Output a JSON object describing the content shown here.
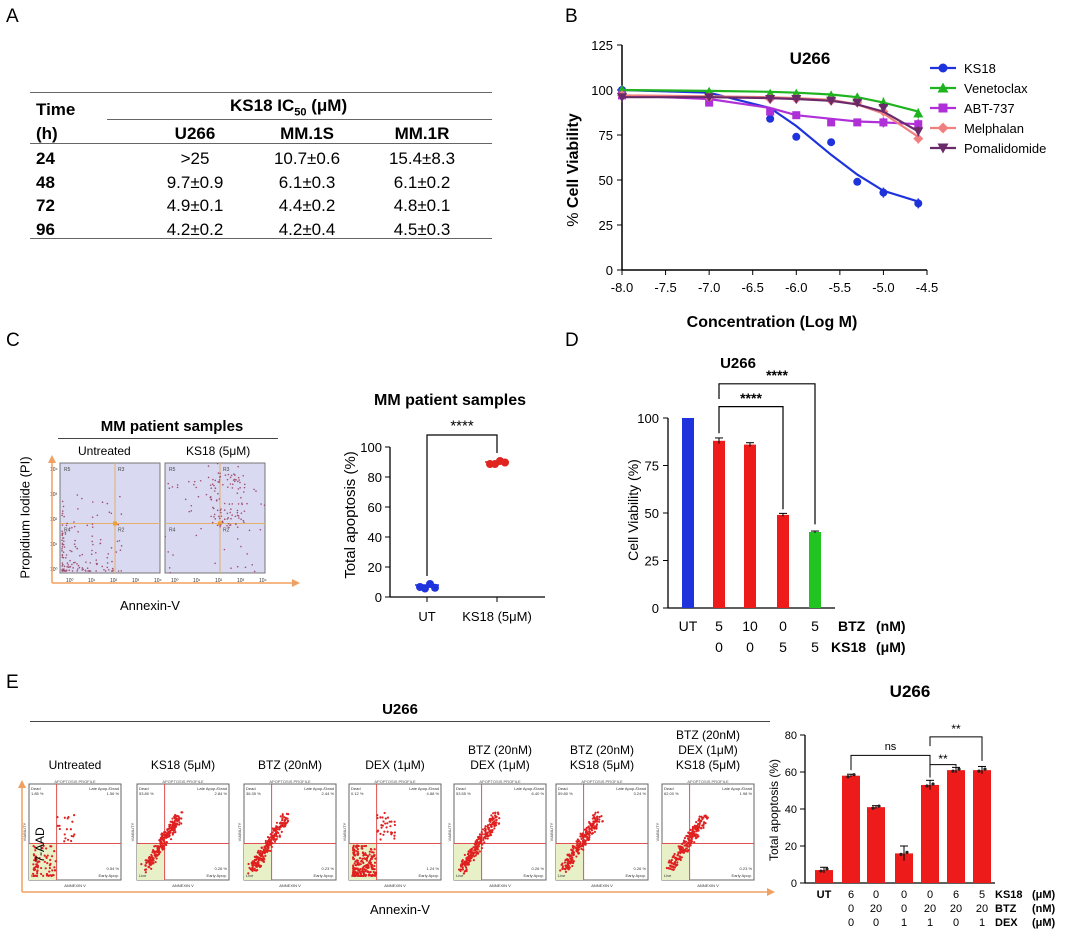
{
  "panels": {
    "a": "A",
    "b": "B",
    "c": "C",
    "d": "D",
    "e": "E"
  },
  "table": {
    "col_time": "Time",
    "col_h": "(h)",
    "title_pre": "KS18 IC",
    "title_sub": "50",
    "title_post": " (μM)",
    "headers": [
      "U266",
      "MM.1S",
      "MM.1R"
    ],
    "rows": [
      {
        "time": "24",
        "v": [
          ">25",
          "10.7±0.6",
          "15.4±8.3"
        ]
      },
      {
        "time": "48",
        "v": [
          "9.7±0.9",
          "6.1±0.3",
          "6.1±0.2"
        ]
      },
      {
        "time": "72",
        "v": [
          "4.9±0.1",
          "4.4±0.2",
          "4.8±0.1"
        ]
      },
      {
        "time": "96",
        "v": [
          "4.2±0.2",
          "4.2±0.4",
          "4.5±0.3"
        ]
      }
    ]
  },
  "chart_data": [
    {
      "id": "B",
      "type": "line",
      "title": "U266",
      "xlabel": "Concentration (Log M)",
      "ylabel_pre": "% ",
      "ylabel_bold": "Cell Viability",
      "xlim": [
        -8.0,
        -4.5
      ],
      "ylim": [
        0,
        125
      ],
      "x_ticks": [
        "-8.0",
        "-7.5",
        "-7.0",
        "-6.5",
        "-6.0",
        "-5.5",
        "-5.0",
        "-4.5"
      ],
      "x_tick_values": [
        -8.0,
        -7.5,
        -7.0,
        -6.5,
        -6.0,
        -5.5,
        -5.0,
        -4.5
      ],
      "y_ticks": [
        "0",
        "25",
        "50",
        "75",
        "100",
        "125"
      ],
      "y_tick_values": [
        0,
        25,
        50,
        75,
        100,
        125
      ],
      "x": [
        -8.0,
        -7.0,
        -6.3,
        -6.0,
        -5.6,
        -5.3,
        -5.0,
        -4.6
      ],
      "series": [
        {
          "name": "KS18",
          "color": "#1f33dd",
          "marker": "circle",
          "values": [
            100,
            97,
            84,
            74,
            71,
            49,
            43,
            37
          ],
          "fit": [
            100,
            98.5,
            90,
            80,
            64,
            53,
            44,
            38
          ]
        },
        {
          "name": "Venetoclax",
          "color": "#1fb31f",
          "marker": "triangle",
          "values": [
            100,
            99,
            98,
            98,
            97,
            96,
            93,
            87
          ],
          "fit": [
            100,
            99.5,
            99,
            98.5,
            97.5,
            96,
            93,
            88
          ]
        },
        {
          "name": "ABT-737",
          "color": "#b030d8",
          "marker": "square",
          "values": [
            97,
            93,
            88,
            86,
            82,
            82,
            82,
            81
          ],
          "fit": [
            97,
            95,
            90,
            86,
            84,
            82.5,
            82,
            81
          ]
        },
        {
          "name": "Melphalan",
          "color": "#f08080",
          "marker": "diamond",
          "values": [
            97,
            96,
            95,
            95,
            94,
            93,
            88,
            73
          ],
          "fit": [
            97,
            96.5,
            96,
            95.5,
            94.5,
            92,
            87,
            74
          ]
        },
        {
          "name": "Pomalidomide",
          "color": "#6a2a6a",
          "marker": "tri-down",
          "values": [
            96,
            96,
            95,
            95,
            94,
            93,
            90,
            77
          ],
          "fit": [
            96,
            96,
            95.5,
            95,
            94,
            92,
            88,
            77
          ]
        }
      ]
    },
    {
      "id": "C",
      "type": "scatter",
      "title": "MM patient samples",
      "ylabel": "Total apoptosis (%)",
      "ylim": [
        0,
        100
      ],
      "y_ticks": [
        "0",
        "20",
        "40",
        "60",
        "80",
        "100"
      ],
      "y_tick_values": [
        0,
        20,
        40,
        60,
        80,
        100
      ],
      "categories": [
        "UT",
        "KS18 (5μM)"
      ],
      "series": [
        {
          "name": "UT",
          "color": "#1f33dd",
          "values": [
            6,
            7,
            8,
            7.5
          ]
        },
        {
          "name": "KS18 (5μM)",
          "color": "#e0241f",
          "values": [
            88,
            90,
            90,
            91
          ]
        }
      ],
      "significance": "****"
    },
    {
      "id": "D",
      "type": "bar",
      "title": "U266",
      "ylabel": "Cell Viability  (%)",
      "ylim": [
        0,
        100
      ],
      "y_ticks": [
        "0",
        "25",
        "50",
        "75",
        "100"
      ],
      "y_tick_values": [
        0,
        25,
        50,
        75,
        100
      ],
      "categories": [
        "UT",
        "5/0",
        "10/0",
        "0/5",
        "5/5"
      ],
      "values": [
        100,
        88,
        86,
        49,
        40
      ],
      "errors": [
        0,
        1.5,
        1,
        0.8,
        0.5
      ],
      "colors": [
        "#1f33dd",
        "#ee1b1b",
        "#ee1b1b",
        "#ee1b1b",
        "#22c422"
      ],
      "significance": [
        "****",
        "****"
      ]
    },
    {
      "id": "E",
      "type": "bar",
      "title": "U266",
      "ylabel": "Total apoptosis (%)",
      "ylim": [
        0,
        80
      ],
      "y_ticks": [
        "0",
        "20",
        "40",
        "60",
        "80"
      ],
      "y_tick_values": [
        0,
        20,
        40,
        60,
        80
      ],
      "values": [
        7,
        58,
        41,
        16,
        53,
        61,
        61
      ],
      "errors": [
        1.5,
        0.8,
        0.8,
        4,
        2.5,
        1.5,
        2
      ],
      "color": "#ee1b1b",
      "significance": [
        "ns",
        "**",
        "**"
      ]
    }
  ],
  "panel_b": {
    "legend": [
      "KS18",
      "Venetoclax",
      "ABT-737",
      "Melphalan",
      "Pomalidomide"
    ]
  },
  "panel_c": {
    "flow_title": "MM patient samples",
    "cond1": "Untreated",
    "cond2": "KS18 (5μM)",
    "ylabel": "Propidium Iodide (PI)",
    "xlabel": "Annexin-V",
    "xt": [
      "10⁰",
      "10¹",
      "10²",
      "10³",
      "10⁴"
    ],
    "yt": [
      "10⁴",
      "10³",
      "10²",
      "10¹",
      "10⁰"
    ],
    "quads": [
      "R5",
      "R3",
      "R4",
      "R2"
    ],
    "scatter_title": "MM patient samples",
    "cat1": "UT",
    "cat2": "KS18 (5μM)",
    "sig": "****"
  },
  "panel_d": {
    "x_row1": [
      "UT",
      "5",
      "10",
      "0",
      "5"
    ],
    "x_row2": [
      "0",
      "0",
      "5",
      "5"
    ],
    "label_btz": "BTZ",
    "label_ks18": "KS18",
    "unit_btz": "(nM)",
    "unit_ks18": "(μM)"
  },
  "panel_e": {
    "flow_title": "U266",
    "conds": [
      [
        "Untreated"
      ],
      [
        "KS18 (5μM)"
      ],
      [
        "BTZ (20nM)"
      ],
      [
        "DEX (1μM)"
      ],
      [
        "BTZ (20nM)",
        "DEX (1μM)"
      ],
      [
        "BTZ (20nM)",
        "KS18 (5μM)"
      ],
      [
        "BTZ (20nM)",
        "DEX  (1μM)",
        "KS18 (5μM)"
      ]
    ],
    "plot_header": "APOPTOSIS PROFILE",
    "pcts": [
      [
        "1.85 %",
        "1.56 %",
        "0.54 %"
      ],
      [
        "53.80 %",
        "2.84 %",
        "0.26 %"
      ],
      [
        "36.35 %",
        "2.44 %",
        "0.23 %"
      ],
      [
        "0.12 %",
        "4.88 %",
        "1.24 %"
      ],
      [
        "53.55 %",
        "6.40 %",
        "0.26 %"
      ],
      [
        "59.80 %",
        "3.24 %",
        "0.26 %"
      ],
      [
        "62.00 %",
        "1.98 %",
        "0.23 %"
      ]
    ],
    "q_dead": "Dead",
    "q_late": "Late Apop./Dead",
    "q_early": "Early Apop.",
    "q_live": "Live",
    "ax_x": "ANNEXIN V",
    "ax_y": "VIABILITY",
    "xlabel": "Annexin-V",
    "ylabel": "7-AAD",
    "rows": {
      "KS18": [
        "UT",
        "6",
        "0",
        "0",
        "0",
        "6",
        "5"
      ],
      "BTZ": [
        "0",
        "20",
        "0",
        "20",
        "20",
        "20"
      ],
      "DEX": [
        "0",
        "0",
        "1",
        "1",
        "0",
        "1"
      ]
    },
    "row_labels": [
      "KS18",
      "BTZ",
      "DEX"
    ],
    "row_units": [
      "(μM)",
      "(nM)",
      "(μM)"
    ]
  }
}
